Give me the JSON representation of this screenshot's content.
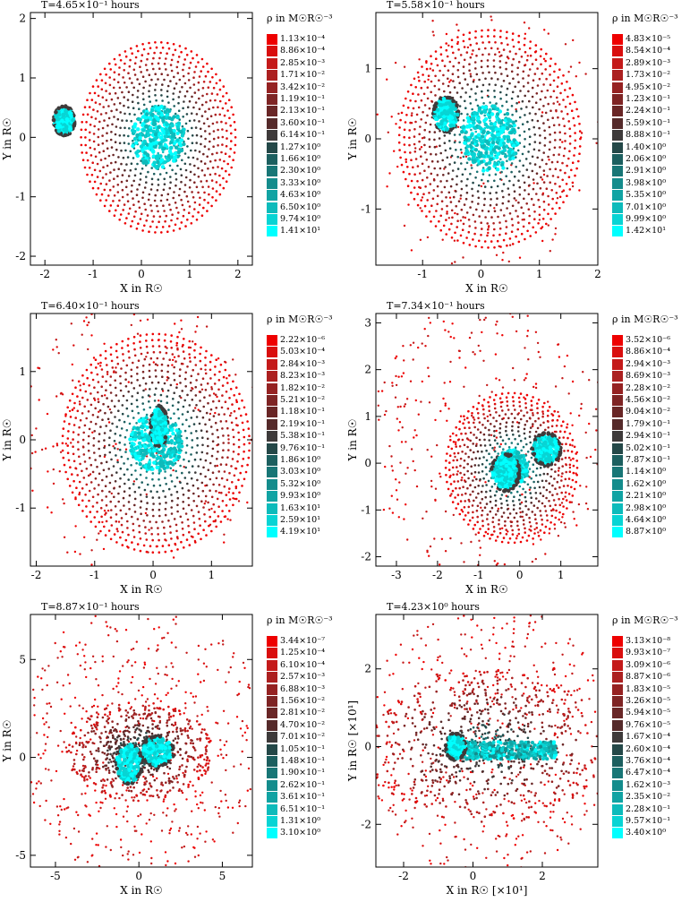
{
  "chart_data": [
    {
      "type": "scatter",
      "title": "T=4.65×10⁻¹ hours",
      "xlabel": "X in R☉",
      "ylabel": "Y in R☉",
      "xlim": [
        -2.3,
        2.3
      ],
      "ylim": [
        -2.15,
        2.1
      ],
      "xticks": [
        "-2",
        "-1",
        "0",
        "1",
        "2"
      ],
      "xtick_values": [
        -2,
        -1,
        0,
        1,
        2
      ],
      "yticks": [
        "-2",
        "-1",
        "0",
        "1",
        "2"
      ],
      "ytick_values": [
        -2,
        -1,
        0,
        1,
        2
      ],
      "legend_title": "ρ in M☉R☉⁻³",
      "legend": [
        "1.13×10⁻⁴",
        "8.86×10⁻⁴",
        "2.85×10⁻³",
        "1.71×10⁻²",
        "3.42×10⁻²",
        "1.19×10⁻¹",
        "2.13×10⁻¹",
        "3.60×10⁻¹",
        "6.14×10⁻¹",
        "1.27×10⁰",
        "1.66×10⁰",
        "2.30×10⁰",
        "3.33×10⁰",
        "4.63×10⁰",
        "6.50×10⁰",
        "9.74×10⁰",
        "1.41×10¹"
      ],
      "bodies": [
        {
          "kind": "disk",
          "x": 0.35,
          "y": 0,
          "r": 1.6,
          "r_core": 0.55
        },
        {
          "kind": "blob",
          "x": -1.6,
          "y": 0.28,
          "rx": 0.22,
          "ry": 0.25
        }
      ],
      "scatter_spread": 0
    },
    {
      "type": "scatter",
      "title": "T=5.58×10⁻¹ hours",
      "xlabel": "X in R☉",
      "ylabel": "Y in R☉",
      "xlim": [
        -1.8,
        2.0
      ],
      "ylim": [
        -1.8,
        1.8
      ],
      "xticks": [
        "-1",
        "0",
        "1",
        "2"
      ],
      "xtick_values": [
        -1,
        0,
        1,
        2
      ],
      "yticks": [
        "-1",
        "0",
        "1"
      ],
      "ytick_values": [
        -1,
        0,
        1
      ],
      "legend_title": "ρ in M☉R☉⁻³",
      "legend": [
        "4.83×10⁻⁵",
        "8.54×10⁻⁴",
        "2.89×10⁻³",
        "1.73×10⁻²",
        "4.95×10⁻²",
        "1.23×10⁻¹",
        "2.24×10⁻¹",
        "5.59×10⁻¹",
        "8.88×10⁻¹",
        "1.40×10⁰",
        "2.06×10⁰",
        "2.91×10⁰",
        "3.98×10⁰",
        "5.35×10⁰",
        "7.01×10⁰",
        "9.99×10⁰",
        "1.42×10¹"
      ],
      "bodies": [
        {
          "kind": "disk",
          "x": 0.15,
          "y": 0,
          "r": 1.55,
          "r_core": 0.5
        },
        {
          "kind": "blob",
          "x": -0.6,
          "y": 0.35,
          "rx": 0.22,
          "ry": 0.25
        }
      ],
      "scatter_spread": 0.2
    },
    {
      "type": "scatter",
      "title": "T=6.40×10⁻¹ hours",
      "xlabel": "X in R☉",
      "ylabel": "Y in R☉",
      "xlim": [
        -2.1,
        1.7
      ],
      "ylim": [
        -1.85,
        1.85
      ],
      "xticks": [
        "-2",
        "-1",
        "0",
        "1"
      ],
      "xtick_values": [
        -2,
        -1,
        0,
        1
      ],
      "yticks": [
        "-1",
        "0",
        "1"
      ],
      "ytick_values": [
        -1,
        0,
        1
      ],
      "legend_title": "ρ in M☉R☉⁻³",
      "legend": [
        "2.22×10⁻⁶",
        "5.03×10⁻⁴",
        "2.84×10⁻³",
        "8.23×10⁻³",
        "1.82×10⁻²",
        "5.21×10⁻²",
        "1.18×10⁻¹",
        "2.19×10⁻¹",
        "5.38×10⁻¹",
        "9.76×10⁻¹",
        "1.86×10⁰",
        "3.03×10⁰",
        "5.32×10⁰",
        "9.93×10⁰",
        "1.63×10¹",
        "2.59×10¹",
        "4.19×10¹"
      ],
      "bodies": [
        {
          "kind": "disk",
          "x": 0.05,
          "y": -0.05,
          "r": 1.6,
          "r_core": 0.45
        },
        {
          "kind": "blob",
          "x": 0.1,
          "y": 0.2,
          "rx": 0.15,
          "ry": 0.3
        }
      ],
      "scatter_spread": 0.6
    },
    {
      "type": "scatter",
      "title": "T=7.34×10⁻¹ hours",
      "xlabel": "X in R☉",
      "ylabel": "Y in R☉",
      "xlim": [
        -3.5,
        1.9
      ],
      "ylim": [
        -2.2,
        3.2
      ],
      "xticks": [
        "-3",
        "-2",
        "-1",
        "0",
        "1"
      ],
      "xtick_values": [
        -3,
        -2,
        -1,
        0,
        1
      ],
      "yticks": [
        "-2",
        "-1",
        "0",
        "1",
        "2",
        "3"
      ],
      "ytick_values": [
        -2,
        -1,
        0,
        1,
        2,
        3
      ],
      "legend_title": "ρ in M☉R☉⁻³",
      "legend": [
        "3.52×10⁻⁶",
        "8.86×10⁻⁴",
        "2.94×10⁻³",
        "8.69×10⁻³",
        "2.28×10⁻²",
        "4.56×10⁻²",
        "9.04×10⁻²",
        "1.79×10⁻¹",
        "2.94×10⁻¹",
        "5.02×10⁻¹",
        "7.87×10⁻¹",
        "1.14×10⁰",
        "1.62×10⁰",
        "2.21×10⁰",
        "2.98×10⁰",
        "4.64×10⁰",
        "8.87×10⁰"
      ],
      "bodies": [
        {
          "kind": "disk",
          "x": -0.2,
          "y": -0.1,
          "r": 1.6,
          "r_core": 0.4
        },
        {
          "kind": "blob",
          "x": 0.65,
          "y": 0.3,
          "rx": 0.35,
          "ry": 0.35
        },
        {
          "kind": "blob",
          "x": -0.35,
          "y": -0.2,
          "rx": 0.35,
          "ry": 0.4
        }
      ],
      "scatter_spread": 1.2
    },
    {
      "type": "scatter",
      "title": "T=8.87×10⁻¹ hours",
      "xlabel": "X in R☉",
      "ylabel": "Y in R☉",
      "xlim": [
        -6.5,
        6.8
      ],
      "ylim": [
        -5.6,
        7.3
      ],
      "xticks": [
        "-5",
        "0",
        "5"
      ],
      "xtick_values": [
        -5,
        0,
        5
      ],
      "yticks": [
        "-5",
        "0",
        "5"
      ],
      "ytick_values": [
        -5,
        0,
        5
      ],
      "legend_title": "ρ in M☉R☉⁻³",
      "legend": [
        "3.44×10⁻⁷",
        "1.25×10⁻⁴",
        "6.10×10⁻⁴",
        "2.57×10⁻³",
        "6.88×10⁻³",
        "1.56×10⁻²",
        "2.81×10⁻²",
        "4.70×10⁻²",
        "7.01×10⁻²",
        "1.05×10⁻¹",
        "1.48×10⁻¹",
        "1.90×10⁻¹",
        "2.62×10⁻¹",
        "3.61×10⁻¹",
        "6.51×10⁻¹",
        "1.31×10⁰",
        "3.10×10⁰"
      ],
      "bodies": [
        {
          "kind": "cloud",
          "x": 0,
          "y": 0.3,
          "r": 4.2
        },
        {
          "kind": "blob",
          "x": 1.1,
          "y": 0.3,
          "rx": 1.0,
          "ry": 0.8
        },
        {
          "kind": "blob",
          "x": -0.6,
          "y": -0.3,
          "rx": 0.8,
          "ry": 1.1
        }
      ],
      "scatter_spread": 2.2
    },
    {
      "type": "scatter",
      "title": "T=4.23×10⁰ hours",
      "xlabel": "X in R☉ [×10¹]",
      "ylabel": "Y in R☉ [×10¹]",
      "xlim": [
        -2.8,
        3.6
      ],
      "ylim": [
        -3.1,
        3.4
      ],
      "xticks": [
        "-2",
        "0",
        "2"
      ],
      "xtick_values": [
        -2,
        0,
        2
      ],
      "yticks": [
        "-2",
        "0",
        "2"
      ],
      "ytick_values": [
        -2,
        0,
        2
      ],
      "legend_title": "ρ in M☉R☉⁻³",
      "legend": [
        "3.13×10⁻⁸",
        "9.93×10⁻⁷",
        "3.09×10⁻⁶",
        "8.87×10⁻⁶",
        "1.83×10⁻⁵",
        "3.26×10⁻⁵",
        "5.94×10⁻⁵",
        "9.76×10⁻⁵",
        "1.67×10⁻⁴",
        "2.60×10⁻⁴",
        "3.76×10⁻⁴",
        "6.47×10⁻⁴",
        "1.62×10⁻³",
        "2.35×10⁻²",
        "2.28×10⁻¹",
        "9.57×10⁻¹",
        "3.40×10⁰"
      ],
      "bodies": [
        {
          "kind": "cloud",
          "x": 0.4,
          "y": 0,
          "r": 3.3
        },
        {
          "kind": "band",
          "x1": -0.6,
          "x2": 2.4,
          "y": -0.1,
          "h": 0.45
        },
        {
          "kind": "blob",
          "x": -0.5,
          "y": 0.0,
          "rx": 0.3,
          "ry": 0.35
        }
      ],
      "scatter_spread": 2.0
    }
  ],
  "colors": [
    "#ee0000",
    "#d90e0e",
    "#c41a1a",
    "#ac2020",
    "#952222",
    "#7e2424",
    "#692626",
    "#552a2a",
    "#3e3a3a",
    "#244848",
    "#1c5f5f",
    "#187676",
    "#148c8c",
    "#11a3a3",
    "#0dbbbb",
    "#08d4d4",
    "#00ffff"
  ]
}
